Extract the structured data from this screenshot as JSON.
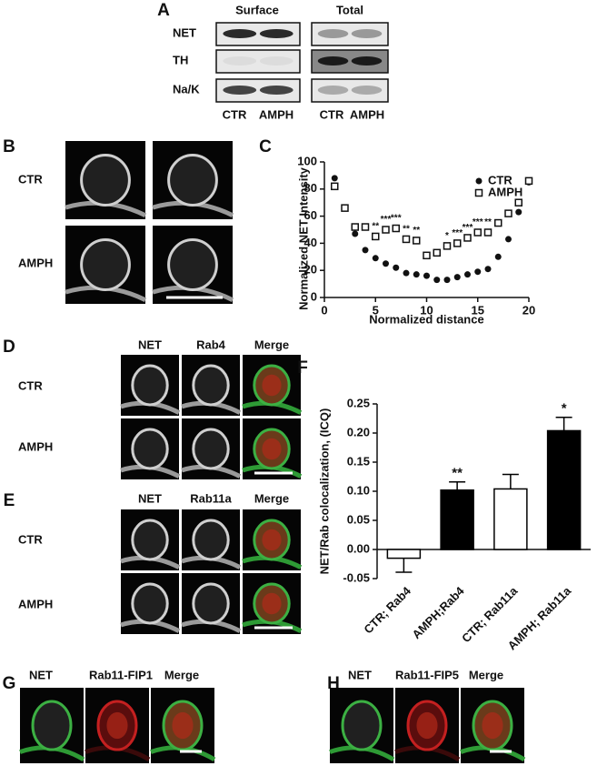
{
  "panels": {
    "a": {
      "label": "A",
      "groups": [
        "Surface",
        "Total"
      ],
      "rows": [
        "NET",
        "TH",
        "Na/K"
      ],
      "columns": [
        "CTR",
        "AMPH",
        "CTR",
        "AMPH"
      ]
    },
    "b": {
      "label": "B",
      "rows": [
        "CTR",
        "AMPH"
      ]
    },
    "c": {
      "label": "C"
    },
    "d": {
      "label": "D",
      "columns": [
        "NET",
        "Rab4",
        "Merge"
      ],
      "rows": [
        "CTR",
        "AMPH"
      ]
    },
    "e": {
      "label": "E",
      "columns": [
        "NET",
        "Rab11a",
        "Merge"
      ],
      "rows": [
        "CTR",
        "AMPH"
      ]
    },
    "f": {
      "label": "F"
    },
    "g": {
      "label": "G",
      "columns": [
        "NET",
        "Rab11-FIP1",
        "Merge"
      ]
    },
    "h": {
      "label": "H",
      "columns": [
        "NET",
        "Rab11-FIP5",
        "Merge"
      ]
    }
  },
  "chart_data": [
    {
      "type": "scatter",
      "x_label": "Normalized distance",
      "y_label": "Normalized NET Intensity",
      "x": [
        1,
        2,
        3,
        4,
        5,
        6,
        7,
        8,
        9,
        10,
        11,
        12,
        13,
        14,
        15,
        16,
        17,
        18,
        19,
        20
      ],
      "series": [
        {
          "name": "CTR",
          "color": "#111111",
          "marker": "circle",
          "values": [
            88,
            66,
            47,
            35,
            29,
            25,
            22,
            18,
            17,
            16,
            13,
            13,
            15,
            17,
            19,
            21,
            30,
            43,
            63,
            85
          ]
        },
        {
          "name": "AMPH",
          "color": "#111111",
          "marker": "square",
          "values": [
            82,
            66,
            52,
            52,
            45,
            50,
            51,
            43,
            42,
            31,
            33,
            38,
            40,
            44,
            48,
            48,
            55,
            62,
            70,
            86
          ],
          "significance": [
            null,
            null,
            null,
            null,
            "**",
            "***",
            "***",
            "**",
            "**",
            null,
            null,
            "*",
            "***",
            "***",
            "***",
            "**",
            null,
            null,
            null,
            null
          ]
        }
      ],
      "xlim": [
        0,
        20
      ],
      "xticks": [
        0,
        5,
        10,
        15,
        20
      ],
      "ylim": [
        0,
        100
      ],
      "yticks": [
        0,
        20,
        40,
        60,
        80,
        100
      ],
      "legend": "upper right"
    },
    {
      "type": "bar",
      "y_label": "NET/Rab colocalization, (ICQ)",
      "categories": [
        "CTR; Rab4",
        "AMPH;Rab4",
        "CTR; Rab11a",
        "AMPH; Rab11a"
      ],
      "values": [
        -0.015,
        0.102,
        0.104,
        0.204
      ],
      "errors": [
        0.024,
        0.014,
        0.025,
        0.023
      ],
      "colors": [
        "#ffffff",
        "#000000",
        "#ffffff",
        "#000000"
      ],
      "significance": [
        null,
        "**",
        null,
        "*"
      ],
      "ylim": [
        -0.05,
        0.25
      ],
      "yticks": [
        -0.05,
        {
          "value": 0,
          "label": "0.00"
        },
        0.05,
        {
          "value": 0.1,
          "label": "0.10"
        },
        0.15,
        {
          "value": 0.2,
          "label": "0.20"
        },
        0.25
      ]
    }
  ]
}
